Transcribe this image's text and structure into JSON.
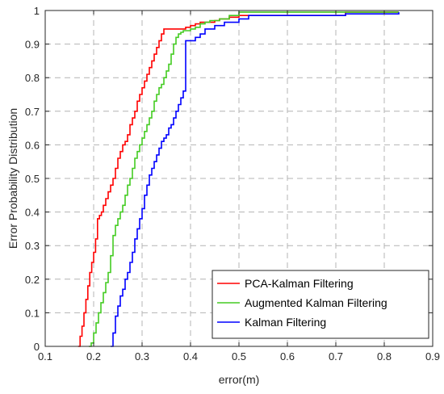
{
  "chart_data": {
    "type": "line",
    "xlabel": "error(m)",
    "ylabel": "Error Probability Distribution",
    "xlim": [
      0.1,
      0.9
    ],
    "ylim": [
      0,
      1
    ],
    "xticks": [
      "0.1",
      "0.2",
      "0.3",
      "0.4",
      "0.5",
      "0.6",
      "0.7",
      "0.8",
      "0.9"
    ],
    "yticks": [
      "0",
      "0.1",
      "0.2",
      "0.3",
      "0.4",
      "0.5",
      "0.6",
      "0.7",
      "0.8",
      "0.9",
      "1"
    ],
    "grid": true,
    "legend_position": "bottom-right",
    "series": [
      {
        "name": "PCA-Kalman Filtering",
        "color": "#ff0000",
        "x": [
          0.168,
          0.172,
          0.176,
          0.18,
          0.184,
          0.188,
          0.192,
          0.196,
          0.2,
          0.204,
          0.208,
          0.212,
          0.216,
          0.22,
          0.225,
          0.23,
          0.235,
          0.24,
          0.245,
          0.25,
          0.255,
          0.26,
          0.265,
          0.27,
          0.275,
          0.28,
          0.285,
          0.29,
          0.295,
          0.3,
          0.305,
          0.31,
          0.315,
          0.32,
          0.325,
          0.33,
          0.335,
          0.34,
          0.345,
          0.35,
          0.355,
          0.37,
          0.38,
          0.39,
          0.4,
          0.41,
          0.42,
          0.43,
          0.44,
          0.45,
          0.46,
          0.48,
          0.5,
          0.72,
          0.83
        ],
        "y": [
          0.0,
          0.03,
          0.06,
          0.1,
          0.14,
          0.18,
          0.22,
          0.25,
          0.28,
          0.32,
          0.38,
          0.39,
          0.4,
          0.42,
          0.44,
          0.46,
          0.48,
          0.5,
          0.53,
          0.56,
          0.58,
          0.6,
          0.61,
          0.63,
          0.66,
          0.68,
          0.7,
          0.73,
          0.75,
          0.77,
          0.79,
          0.81,
          0.83,
          0.85,
          0.87,
          0.89,
          0.91,
          0.93,
          0.945,
          0.945,
          0.945,
          0.945,
          0.945,
          0.95,
          0.955,
          0.96,
          0.965,
          0.965,
          0.965,
          0.97,
          0.975,
          0.98,
          0.985,
          0.995,
          0.995
        ]
      },
      {
        "name": "Augmented Kalman Filtering",
        "color": "#44cc22",
        "x": [
          0.19,
          0.195,
          0.2,
          0.205,
          0.21,
          0.215,
          0.22,
          0.225,
          0.23,
          0.235,
          0.24,
          0.245,
          0.25,
          0.255,
          0.26,
          0.265,
          0.27,
          0.275,
          0.28,
          0.285,
          0.29,
          0.295,
          0.3,
          0.305,
          0.31,
          0.315,
          0.32,
          0.325,
          0.33,
          0.335,
          0.34,
          0.345,
          0.35,
          0.355,
          0.36,
          0.365,
          0.37,
          0.375,
          0.38,
          0.385,
          0.39,
          0.4,
          0.41,
          0.42,
          0.43,
          0.44,
          0.46,
          0.48,
          0.5,
          0.62,
          0.72,
          0.83
        ],
        "y": [
          0.0,
          0.01,
          0.04,
          0.07,
          0.1,
          0.13,
          0.16,
          0.19,
          0.22,
          0.27,
          0.33,
          0.36,
          0.38,
          0.4,
          0.42,
          0.45,
          0.48,
          0.5,
          0.53,
          0.56,
          0.58,
          0.6,
          0.62,
          0.64,
          0.66,
          0.68,
          0.7,
          0.73,
          0.75,
          0.77,
          0.78,
          0.8,
          0.82,
          0.84,
          0.87,
          0.9,
          0.92,
          0.93,
          0.935,
          0.94,
          0.94,
          0.945,
          0.95,
          0.96,
          0.965,
          0.97,
          0.975,
          0.985,
          0.995,
          0.995,
          0.995,
          0.995
        ]
      },
      {
        "name": "Kalman Filtering",
        "color": "#0000ff",
        "x": [
          0.235,
          0.24,
          0.245,
          0.25,
          0.255,
          0.26,
          0.265,
          0.27,
          0.275,
          0.28,
          0.285,
          0.29,
          0.295,
          0.3,
          0.305,
          0.31,
          0.315,
          0.32,
          0.325,
          0.33,
          0.335,
          0.34,
          0.345,
          0.35,
          0.355,
          0.36,
          0.365,
          0.37,
          0.375,
          0.38,
          0.385,
          0.39,
          0.4,
          0.41,
          0.42,
          0.43,
          0.45,
          0.47,
          0.5,
          0.52,
          0.6,
          0.72,
          0.83
        ],
        "y": [
          0.0,
          0.04,
          0.09,
          0.12,
          0.15,
          0.17,
          0.2,
          0.22,
          0.25,
          0.28,
          0.32,
          0.35,
          0.38,
          0.41,
          0.45,
          0.48,
          0.51,
          0.53,
          0.55,
          0.57,
          0.59,
          0.61,
          0.62,
          0.63,
          0.65,
          0.66,
          0.68,
          0.7,
          0.72,
          0.74,
          0.76,
          0.91,
          0.91,
          0.92,
          0.93,
          0.945,
          0.955,
          0.965,
          0.975,
          0.985,
          0.985,
          0.99,
          0.995
        ]
      }
    ]
  }
}
